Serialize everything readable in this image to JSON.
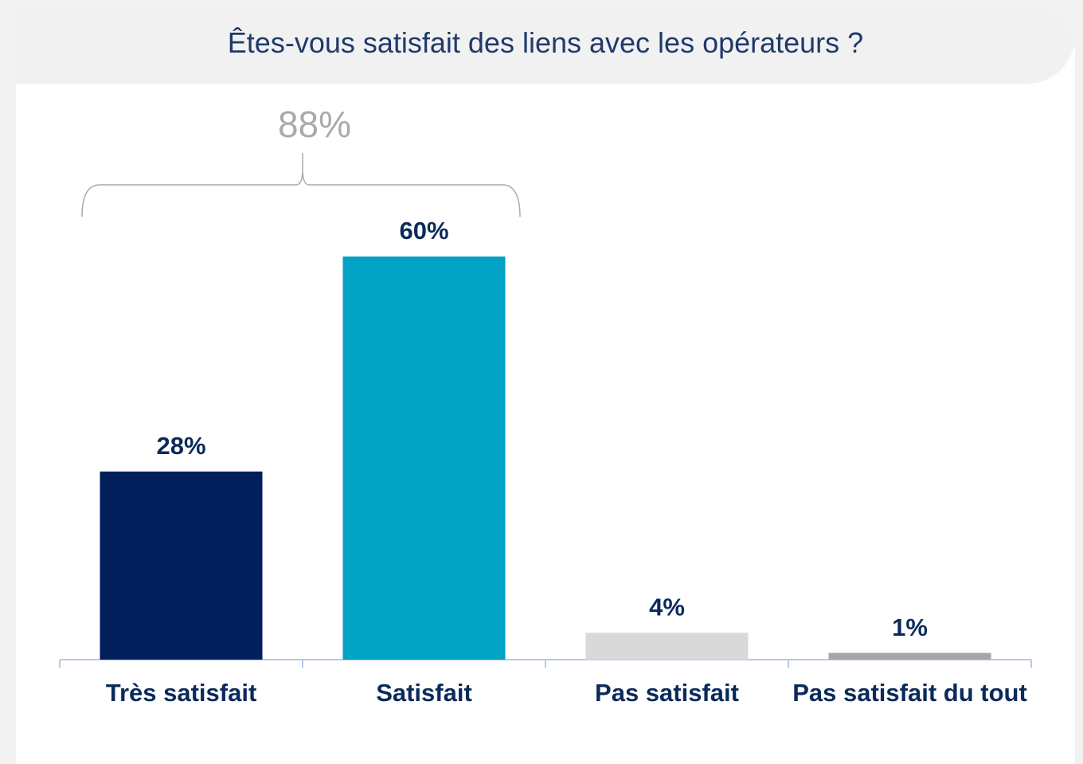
{
  "chart_data": {
    "type": "bar",
    "title": "Êtes-vous satisfait des liens avec les opérateurs ?",
    "categories": [
      "Très satisfait",
      "Satisfait",
      "Pas satisfait",
      "Pas satisfait du tout"
    ],
    "values": [
      28,
      60,
      4,
      1
    ],
    "value_labels": [
      "28%",
      "60%",
      "4%",
      "1%"
    ],
    "colors": [
      "#001f5b",
      "#00a3c4",
      "#d9d9d9",
      "#a6a6a6"
    ],
    "annotation": {
      "value": 88,
      "label": "88%"
    }
  }
}
